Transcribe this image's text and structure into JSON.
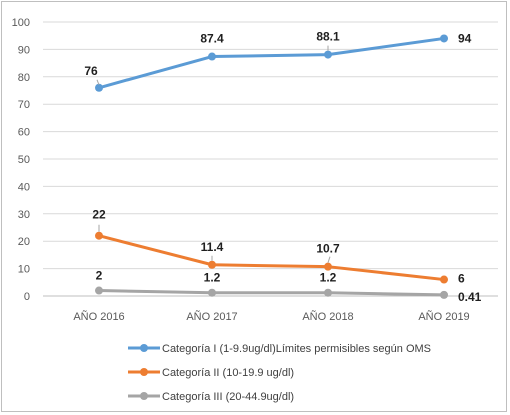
{
  "chart_data": {
    "type": "line",
    "title": "",
    "xlabel": "",
    "ylabel": "",
    "categories": [
      "AÑO 2016",
      "AÑO 2017",
      "AÑO 2018",
      "AÑO 2019"
    ],
    "ylim": [
      0,
      100
    ],
    "yticks": [
      "0",
      "10",
      "20",
      "30",
      "40",
      "50",
      "60",
      "70",
      "80",
      "90",
      "100"
    ],
    "grid": true,
    "legend_position": "bottom",
    "series": [
      {
        "name": "Categoría I  (1-9.9ug/dl)Límites permisibles según OMS",
        "color": "#5b9bd5",
        "values": [
          76,
          87.4,
          88.1,
          94
        ],
        "labels": [
          "76",
          "87.4",
          "88.1",
          "94"
        ]
      },
      {
        "name": "Categoría II (10-19.9 ug/dl)",
        "color": "#ed7d31",
        "values": [
          22,
          11.4,
          10.7,
          6
        ],
        "labels": [
          "22",
          "11.4",
          "10.7",
          "6"
        ]
      },
      {
        "name": "Categoría III (20-44.9ug/dl)",
        "color": "#a5a5a5",
        "values": [
          2,
          1.2,
          1.2,
          0.41
        ],
        "labels": [
          "2",
          "1.2",
          "1.2",
          "0.41"
        ]
      }
    ]
  }
}
